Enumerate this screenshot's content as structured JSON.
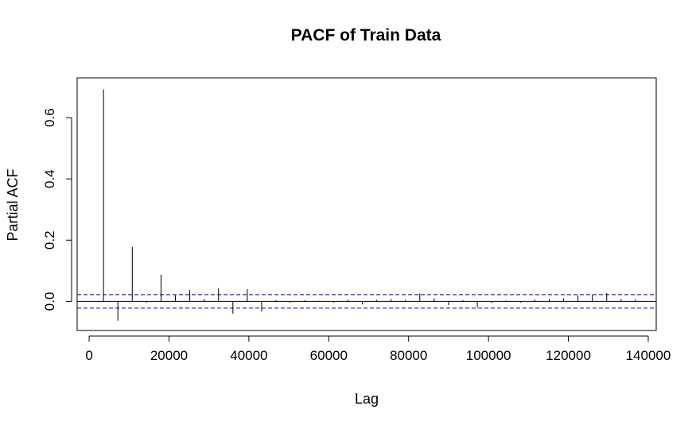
{
  "chart_data": {
    "type": "bar",
    "title": "PACF of Train Data",
    "xlabel": "Lag",
    "ylabel": "Partial ACF",
    "xlim": [
      -3000,
      142000
    ],
    "ylim": [
      -0.095,
      0.73
    ],
    "xticks": [
      0,
      20000,
      40000,
      60000,
      80000,
      100000,
      120000,
      140000
    ],
    "yticks": [
      0.0,
      0.2,
      0.4,
      0.6
    ],
    "ytick_labels": [
      "0.0",
      "0.2",
      "0.4",
      "0.6"
    ],
    "confidence_bound": 0.022,
    "grid": false,
    "points": [
      {
        "x": 3600,
        "y": 0.692
      },
      {
        "x": 7200,
        "y": -0.063
      },
      {
        "x": 10800,
        "y": 0.178
      },
      {
        "x": 14400,
        "y": -0.004
      },
      {
        "x": 18000,
        "y": 0.087
      },
      {
        "x": 21600,
        "y": 0.02
      },
      {
        "x": 25200,
        "y": 0.037
      },
      {
        "x": 28800,
        "y": 0.008
      },
      {
        "x": 32400,
        "y": 0.043
      },
      {
        "x": 36000,
        "y": -0.04
      },
      {
        "x": 39600,
        "y": 0.04
      },
      {
        "x": 43200,
        "y": -0.033
      },
      {
        "x": 46800,
        "y": 0.005
      },
      {
        "x": 50400,
        "y": -0.004
      },
      {
        "x": 54000,
        "y": 0.004
      },
      {
        "x": 57600,
        "y": 0.002
      },
      {
        "x": 61200,
        "y": -0.004
      },
      {
        "x": 64800,
        "y": 0.006
      },
      {
        "x": 68400,
        "y": -0.01
      },
      {
        "x": 72000,
        "y": 0.005
      },
      {
        "x": 75600,
        "y": 0.008
      },
      {
        "x": 79200,
        "y": 0.005
      },
      {
        "x": 82800,
        "y": 0.026
      },
      {
        "x": 86400,
        "y": 0.01
      },
      {
        "x": 90000,
        "y": -0.012
      },
      {
        "x": 93600,
        "y": 0.004
      },
      {
        "x": 97200,
        "y": -0.02
      },
      {
        "x": 100800,
        "y": -0.005
      },
      {
        "x": 104400,
        "y": 0.003
      },
      {
        "x": 108000,
        "y": -0.004
      },
      {
        "x": 111600,
        "y": 0.006
      },
      {
        "x": 115200,
        "y": 0.008
      },
      {
        "x": 118800,
        "y": 0.01
      },
      {
        "x": 122400,
        "y": 0.02
      },
      {
        "x": 126000,
        "y": 0.022
      },
      {
        "x": 129600,
        "y": 0.027
      },
      {
        "x": 133200,
        "y": 0.008
      },
      {
        "x": 136800,
        "y": 0.007
      }
    ],
    "colors": {
      "spike": "#000000",
      "confidence": "#00008b",
      "frame": "#000000",
      "background": "#ffffff"
    }
  }
}
